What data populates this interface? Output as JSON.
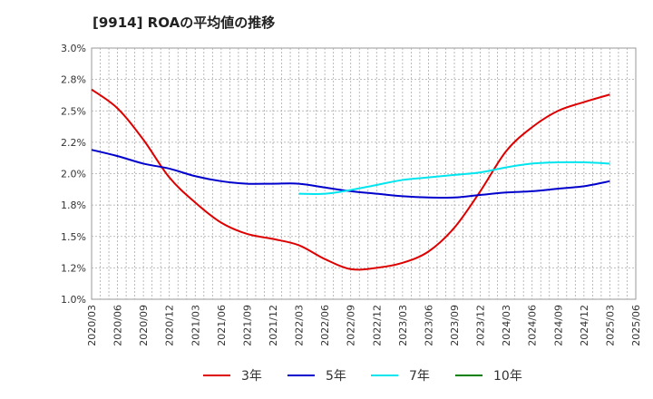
{
  "chart_data": {
    "type": "line",
    "title": "[9914]  ROAの平均値の推移",
    "x": [
      "2020/03",
      "2020/06",
      "2020/09",
      "2020/12",
      "2021/03",
      "2021/06",
      "2021/09",
      "2021/12",
      "2022/03",
      "2022/06",
      "2022/09",
      "2022/12",
      "2023/03",
      "2023/06",
      "2023/09",
      "2023/12",
      "2024/03",
      "2024/06",
      "2024/09",
      "2024/12",
      "2025/03",
      "2025/06"
    ],
    "y_ticks": [
      "1.0%",
      "1.2%",
      "1.5%",
      "1.8%",
      "2.0%",
      "2.2%",
      "2.5%",
      "2.8%",
      "3.0%"
    ],
    "ylim": [
      1.0,
      3.0
    ],
    "grid": true,
    "legend_position": "bottom",
    "series": [
      {
        "name": "3年",
        "color": "#dd0000",
        "values": [
          2.67,
          2.52,
          2.27,
          1.97,
          1.77,
          1.61,
          1.52,
          1.48,
          1.43,
          1.32,
          1.24,
          1.25,
          1.29,
          1.38,
          1.57,
          1.86,
          2.18,
          2.37,
          2.5,
          2.57,
          2.63,
          null
        ]
      },
      {
        "name": "5年",
        "color": "#0000cc",
        "values": [
          2.19,
          2.14,
          2.08,
          2.04,
          1.98,
          1.94,
          1.92,
          1.92,
          1.92,
          1.89,
          1.86,
          1.84,
          1.82,
          1.81,
          1.81,
          1.83,
          1.85,
          1.86,
          1.88,
          1.9,
          1.94,
          null
        ]
      },
      {
        "name": "7年",
        "color": "#00e5ee",
        "values": [
          null,
          null,
          null,
          null,
          null,
          null,
          null,
          null,
          1.84,
          1.84,
          1.87,
          1.91,
          1.95,
          1.97,
          1.99,
          2.01,
          2.05,
          2.08,
          2.09,
          2.09,
          2.08,
          null
        ]
      },
      {
        "name": "10年",
        "color": "#008000",
        "values": [
          null,
          null,
          null,
          null,
          null,
          null,
          null,
          null,
          null,
          null,
          null,
          null,
          null,
          null,
          null,
          null,
          null,
          null,
          null,
          null,
          null,
          null
        ]
      }
    ]
  }
}
